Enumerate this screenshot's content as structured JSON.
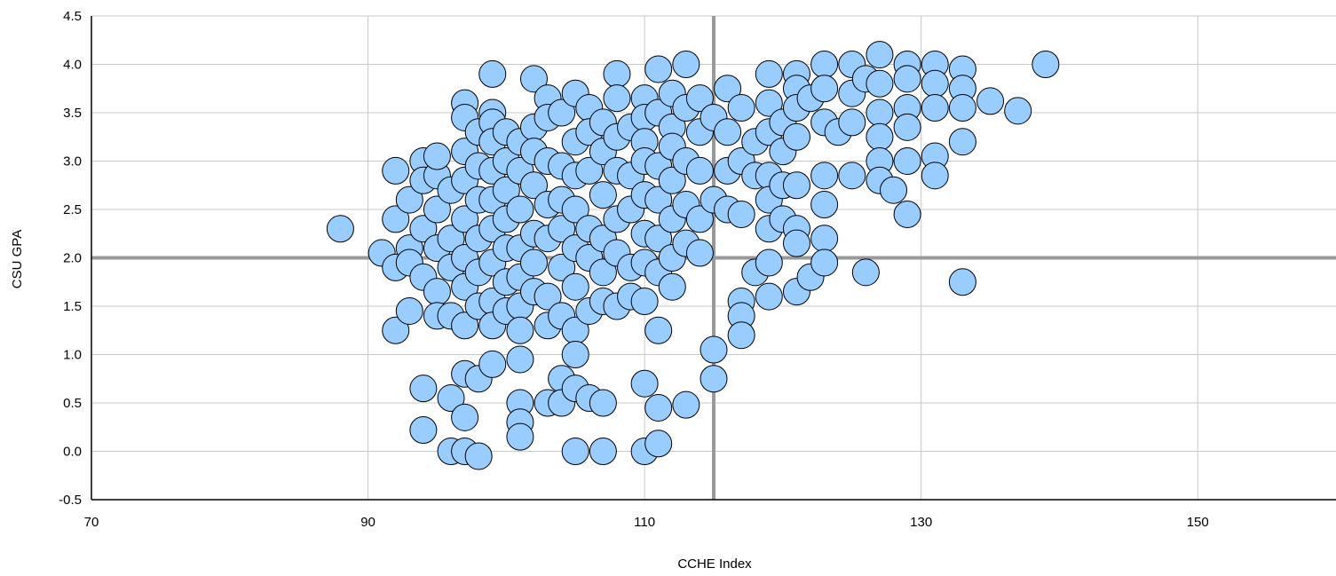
{
  "chart_data": {
    "type": "scatter",
    "title": "",
    "xlabel": "CCHE Index",
    "ylabel": "CSU GPA",
    "xlim": [
      70,
      160
    ],
    "ylim": [
      -0.5,
      4.5
    ],
    "x_ticks": [
      70,
      90,
      110,
      130,
      150
    ],
    "y_ticks": [
      -0.5,
      0.0,
      0.5,
      1.0,
      1.5,
      2.0,
      2.5,
      3.0,
      3.5,
      4.0,
      4.5
    ],
    "x_tick_labels": [
      "70",
      "90",
      "110",
      "130",
      "150"
    ],
    "y_tick_labels": [
      "-0.5",
      "0.0",
      "0.5",
      "1.0",
      "1.5",
      "2.0",
      "2.5",
      "3.0",
      "3.5",
      "4.0",
      "4.5"
    ],
    "grid": true,
    "reference_lines": {
      "x": 115,
      "y": 2.0
    },
    "marker_color": "#99ccff",
    "marker_edge_color": "#000000",
    "grid_color": "#c8c8c8",
    "reference_line_color": "#999999",
    "points": [
      {
        "x": 88,
        "y": 2.3
      },
      {
        "x": 91,
        "y": 2.05
      },
      {
        "x": 92,
        "y": 1.9
      },
      {
        "x": 92,
        "y": 2.9
      },
      {
        "x": 92,
        "y": 2.4
      },
      {
        "x": 92,
        "y": 1.25
      },
      {
        "x": 93,
        "y": 2.6
      },
      {
        "x": 93,
        "y": 2.1
      },
      {
        "x": 93,
        "y": 1.95
      },
      {
        "x": 93,
        "y": 1.45
      },
      {
        "x": 94,
        "y": 3.0
      },
      {
        "x": 94,
        "y": 2.8
      },
      {
        "x": 94,
        "y": 2.3
      },
      {
        "x": 94,
        "y": 1.8
      },
      {
        "x": 94,
        "y": 0.65
      },
      {
        "x": 94,
        "y": 0.22
      },
      {
        "x": 95,
        "y": 2.85
      },
      {
        "x": 95,
        "y": 2.5
      },
      {
        "x": 95,
        "y": 2.1
      },
      {
        "x": 95,
        "y": 1.65
      },
      {
        "x": 95,
        "y": 1.4
      },
      {
        "x": 95,
        "y": 3.05
      },
      {
        "x": 96,
        "y": 2.7
      },
      {
        "x": 96,
        "y": 2.2
      },
      {
        "x": 96,
        "y": 1.9
      },
      {
        "x": 96,
        "y": 1.4
      },
      {
        "x": 96,
        "y": 0.55
      },
      {
        "x": 96,
        "y": 0.0
      },
      {
        "x": 97,
        "y": 3.6
      },
      {
        "x": 97,
        "y": 3.45
      },
      {
        "x": 97,
        "y": 3.1
      },
      {
        "x": 97,
        "y": 2.8
      },
      {
        "x": 97,
        "y": 2.4
      },
      {
        "x": 97,
        "y": 2.0
      },
      {
        "x": 97,
        "y": 1.7
      },
      {
        "x": 97,
        "y": 1.3
      },
      {
        "x": 97,
        "y": 0.8
      },
      {
        "x": 97,
        "y": 0.35
      },
      {
        "x": 97,
        "y": 0.0
      },
      {
        "x": 98,
        "y": 3.3
      },
      {
        "x": 98,
        "y": 2.95
      },
      {
        "x": 98,
        "y": 2.6
      },
      {
        "x": 98,
        "y": 2.2
      },
      {
        "x": 98,
        "y": 1.85
      },
      {
        "x": 98,
        "y": 1.5
      },
      {
        "x": 98,
        "y": 0.75
      },
      {
        "x": 98,
        "y": -0.05
      },
      {
        "x": 99,
        "y": 3.9
      },
      {
        "x": 99,
        "y": 3.5
      },
      {
        "x": 99,
        "y": 3.4
      },
      {
        "x": 99,
        "y": 3.2
      },
      {
        "x": 99,
        "y": 2.9
      },
      {
        "x": 99,
        "y": 2.6
      },
      {
        "x": 99,
        "y": 2.3
      },
      {
        "x": 99,
        "y": 1.95
      },
      {
        "x": 99,
        "y": 1.55
      },
      {
        "x": 99,
        "y": 1.3
      },
      {
        "x": 99,
        "y": 0.9
      },
      {
        "x": 100,
        "y": 3.3
      },
      {
        "x": 100,
        "y": 3.0
      },
      {
        "x": 100,
        "y": 2.7
      },
      {
        "x": 100,
        "y": 2.4
      },
      {
        "x": 100,
        "y": 2.1
      },
      {
        "x": 100,
        "y": 1.75
      },
      {
        "x": 100,
        "y": 1.45
      },
      {
        "x": 101,
        "y": 3.2
      },
      {
        "x": 101,
        "y": 2.9
      },
      {
        "x": 101,
        "y": 2.5
      },
      {
        "x": 101,
        "y": 2.1
      },
      {
        "x": 101,
        "y": 1.8
      },
      {
        "x": 101,
        "y": 1.5
      },
      {
        "x": 101,
        "y": 1.25
      },
      {
        "x": 101,
        "y": 0.95
      },
      {
        "x": 101,
        "y": 0.5
      },
      {
        "x": 101,
        "y": 0.3
      },
      {
        "x": 101,
        "y": 0.15
      },
      {
        "x": 102,
        "y": 3.85
      },
      {
        "x": 102,
        "y": 3.35
      },
      {
        "x": 102,
        "y": 3.1
      },
      {
        "x": 102,
        "y": 2.75
      },
      {
        "x": 102,
        "y": 2.25
      },
      {
        "x": 102,
        "y": 1.95
      },
      {
        "x": 102,
        "y": 1.65
      },
      {
        "x": 103,
        "y": 3.65
      },
      {
        "x": 103,
        "y": 3.45
      },
      {
        "x": 103,
        "y": 3.0
      },
      {
        "x": 103,
        "y": 2.55
      },
      {
        "x": 103,
        "y": 2.2
      },
      {
        "x": 103,
        "y": 1.6
      },
      {
        "x": 103,
        "y": 1.3
      },
      {
        "x": 103,
        "y": 0.5
      },
      {
        "x": 104,
        "y": 3.5
      },
      {
        "x": 104,
        "y": 2.95
      },
      {
        "x": 104,
        "y": 2.6
      },
      {
        "x": 104,
        "y": 2.3
      },
      {
        "x": 104,
        "y": 1.9
      },
      {
        "x": 104,
        "y": 1.4
      },
      {
        "x": 104,
        "y": 0.75
      },
      {
        "x": 104,
        "y": 0.5
      },
      {
        "x": 105,
        "y": 3.7
      },
      {
        "x": 105,
        "y": 3.2
      },
      {
        "x": 105,
        "y": 2.85
      },
      {
        "x": 105,
        "y": 2.5
      },
      {
        "x": 105,
        "y": 2.1
      },
      {
        "x": 105,
        "y": 1.7
      },
      {
        "x": 105,
        "y": 1.25
      },
      {
        "x": 105,
        "y": 1.0
      },
      {
        "x": 105,
        "y": 0.65
      },
      {
        "x": 105,
        "y": 0.0
      },
      {
        "x": 106,
        "y": 3.55
      },
      {
        "x": 106,
        "y": 3.3
      },
      {
        "x": 106,
        "y": 2.9
      },
      {
        "x": 106,
        "y": 2.3
      },
      {
        "x": 106,
        "y": 2.0
      },
      {
        "x": 106,
        "y": 1.45
      },
      {
        "x": 106,
        "y": 0.55
      },
      {
        "x": 107,
        "y": 3.4
      },
      {
        "x": 107,
        "y": 3.1
      },
      {
        "x": 107,
        "y": 2.65
      },
      {
        "x": 107,
        "y": 2.2
      },
      {
        "x": 107,
        "y": 1.85
      },
      {
        "x": 107,
        "y": 1.55
      },
      {
        "x": 107,
        "y": 0.5
      },
      {
        "x": 107,
        "y": 0.0
      },
      {
        "x": 108,
        "y": 3.9
      },
      {
        "x": 108,
        "y": 3.65
      },
      {
        "x": 108,
        "y": 3.25
      },
      {
        "x": 108,
        "y": 2.9
      },
      {
        "x": 108,
        "y": 2.4
      },
      {
        "x": 108,
        "y": 2.05
      },
      {
        "x": 108,
        "y": 1.5
      },
      {
        "x": 109,
        "y": 3.35
      },
      {
        "x": 109,
        "y": 2.85
      },
      {
        "x": 109,
        "y": 2.5
      },
      {
        "x": 109,
        "y": 1.9
      },
      {
        "x": 109,
        "y": 1.6
      },
      {
        "x": 110,
        "y": 3.65
      },
      {
        "x": 110,
        "y": 3.45
      },
      {
        "x": 110,
        "y": 3.2
      },
      {
        "x": 110,
        "y": 3.0
      },
      {
        "x": 110,
        "y": 2.65
      },
      {
        "x": 110,
        "y": 2.25
      },
      {
        "x": 110,
        "y": 1.95
      },
      {
        "x": 110,
        "y": 1.55
      },
      {
        "x": 110,
        "y": 0.7
      },
      {
        "x": 110,
        "y": 0.0
      },
      {
        "x": 111,
        "y": 3.95
      },
      {
        "x": 111,
        "y": 3.5
      },
      {
        "x": 111,
        "y": 2.95
      },
      {
        "x": 111,
        "y": 2.6
      },
      {
        "x": 111,
        "y": 2.2
      },
      {
        "x": 111,
        "y": 1.85
      },
      {
        "x": 111,
        "y": 1.25
      },
      {
        "x": 111,
        "y": 0.45
      },
      {
        "x": 111,
        "y": 0.08
      },
      {
        "x": 112,
        "y": 3.7
      },
      {
        "x": 112,
        "y": 3.35
      },
      {
        "x": 112,
        "y": 3.15
      },
      {
        "x": 112,
        "y": 2.8
      },
      {
        "x": 112,
        "y": 2.4
      },
      {
        "x": 112,
        "y": 2.0
      },
      {
        "x": 112,
        "y": 1.7
      },
      {
        "x": 113,
        "y": 4.0
      },
      {
        "x": 113,
        "y": 3.55
      },
      {
        "x": 113,
        "y": 3.0
      },
      {
        "x": 113,
        "y": 2.55
      },
      {
        "x": 113,
        "y": 2.15
      },
      {
        "x": 113,
        "y": 0.48
      },
      {
        "x": 114,
        "y": 3.65
      },
      {
        "x": 114,
        "y": 3.3
      },
      {
        "x": 114,
        "y": 2.9
      },
      {
        "x": 114,
        "y": 2.4
      },
      {
        "x": 114,
        "y": 2.05
      },
      {
        "x": 115,
        "y": 3.45
      },
      {
        "x": 115,
        "y": 2.6
      },
      {
        "x": 115,
        "y": 1.05
      },
      {
        "x": 115,
        "y": 0.75
      },
      {
        "x": 116,
        "y": 3.75
      },
      {
        "x": 116,
        "y": 3.3
      },
      {
        "x": 116,
        "y": 2.9
      },
      {
        "x": 116,
        "y": 2.5
      },
      {
        "x": 117,
        "y": 3.55
      },
      {
        "x": 117,
        "y": 3.0
      },
      {
        "x": 117,
        "y": 2.45
      },
      {
        "x": 117,
        "y": 1.55
      },
      {
        "x": 117,
        "y": 1.4
      },
      {
        "x": 117,
        "y": 1.2
      },
      {
        "x": 118,
        "y": 3.2
      },
      {
        "x": 118,
        "y": 2.85
      },
      {
        "x": 118,
        "y": 1.85
      },
      {
        "x": 119,
        "y": 3.9
      },
      {
        "x": 119,
        "y": 3.6
      },
      {
        "x": 119,
        "y": 3.3
      },
      {
        "x": 119,
        "y": 2.85
      },
      {
        "x": 119,
        "y": 2.6
      },
      {
        "x": 119,
        "y": 2.3
      },
      {
        "x": 119,
        "y": 1.95
      },
      {
        "x": 119,
        "y": 1.6
      },
      {
        "x": 120,
        "y": 3.4
      },
      {
        "x": 120,
        "y": 3.1
      },
      {
        "x": 120,
        "y": 2.75
      },
      {
        "x": 120,
        "y": 2.4
      },
      {
        "x": 121,
        "y": 3.9
      },
      {
        "x": 121,
        "y": 3.75
      },
      {
        "x": 121,
        "y": 3.55
      },
      {
        "x": 121,
        "y": 3.25
      },
      {
        "x": 121,
        "y": 2.75
      },
      {
        "x": 121,
        "y": 2.3
      },
      {
        "x": 121,
        "y": 2.15
      },
      {
        "x": 121,
        "y": 1.65
      },
      {
        "x": 122,
        "y": 3.65
      },
      {
        "x": 122,
        "y": 1.8
      },
      {
        "x": 123,
        "y": 4.0
      },
      {
        "x": 123,
        "y": 3.75
      },
      {
        "x": 123,
        "y": 3.4
      },
      {
        "x": 123,
        "y": 2.85
      },
      {
        "x": 123,
        "y": 2.55
      },
      {
        "x": 123,
        "y": 2.2
      },
      {
        "x": 123,
        "y": 1.95
      },
      {
        "x": 124,
        "y": 3.3
      },
      {
        "x": 125,
        "y": 4.0
      },
      {
        "x": 125,
        "y": 3.7
      },
      {
        "x": 125,
        "y": 3.4
      },
      {
        "x": 125,
        "y": 2.85
      },
      {
        "x": 126,
        "y": 3.85
      },
      {
        "x": 126,
        "y": 1.85
      },
      {
        "x": 127,
        "y": 4.1
      },
      {
        "x": 127,
        "y": 3.8
      },
      {
        "x": 127,
        "y": 3.5
      },
      {
        "x": 127,
        "y": 3.25
      },
      {
        "x": 127,
        "y": 3.0
      },
      {
        "x": 127,
        "y": 2.8
      },
      {
        "x": 128,
        "y": 2.7
      },
      {
        "x": 129,
        "y": 4.0
      },
      {
        "x": 129,
        "y": 3.85
      },
      {
        "x": 129,
        "y": 3.55
      },
      {
        "x": 129,
        "y": 3.35
      },
      {
        "x": 129,
        "y": 3.0
      },
      {
        "x": 129,
        "y": 2.45
      },
      {
        "x": 131,
        "y": 4.0
      },
      {
        "x": 131,
        "y": 3.8
      },
      {
        "x": 131,
        "y": 3.55
      },
      {
        "x": 131,
        "y": 3.05
      },
      {
        "x": 131,
        "y": 2.85
      },
      {
        "x": 133,
        "y": 3.95
      },
      {
        "x": 133,
        "y": 3.75
      },
      {
        "x": 133,
        "y": 3.55
      },
      {
        "x": 133,
        "y": 3.2
      },
      {
        "x": 133,
        "y": 1.75
      },
      {
        "x": 135,
        "y": 3.62
      },
      {
        "x": 137,
        "y": 3.52
      },
      {
        "x": 139,
        "y": 4.0
      }
    ]
  }
}
